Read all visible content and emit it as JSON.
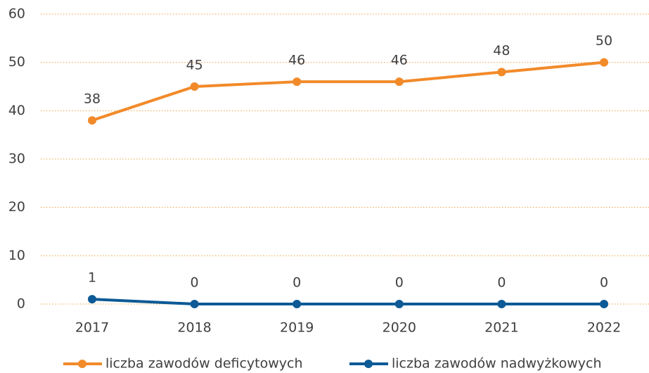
{
  "chart_data": {
    "type": "line",
    "categories": [
      "2017",
      "2018",
      "2019",
      "2020",
      "2021",
      "2022"
    ],
    "series": [
      {
        "name": "liczba zawodów deficytowych",
        "color": "#f28a2a",
        "values": [
          38,
          45,
          46,
          46,
          48,
          50
        ]
      },
      {
        "name": "liczba zawodów nadwyżkowych",
        "color": "#0d5a96",
        "values": [
          1,
          0,
          0,
          0,
          0,
          0
        ]
      }
    ],
    "ylim": [
      0,
      60
    ],
    "yticks": [
      0,
      10,
      20,
      30,
      40,
      50,
      60
    ],
    "grid": true,
    "legend": "bottom"
  }
}
